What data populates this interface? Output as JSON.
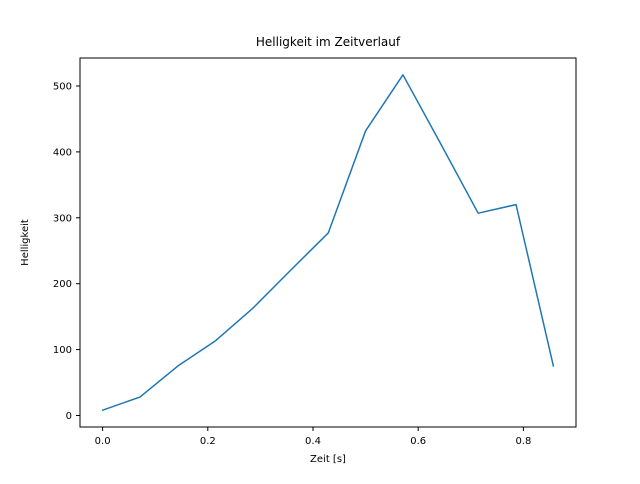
{
  "chart_data": {
    "type": "line",
    "title": "Helligkeit im Zeitverlauf",
    "xlabel": "Zeit [s]",
    "ylabel": "Helligkeit",
    "x": [
      0.0,
      0.071,
      0.143,
      0.214,
      0.286,
      0.357,
      0.429,
      0.5,
      0.571,
      0.643,
      0.714,
      0.786,
      0.857
    ],
    "y": [
      8,
      28,
      75,
      113,
      163,
      220,
      277,
      432,
      517,
      412,
      307,
      320,
      75
    ],
    "xlim": [
      -0.043,
      0.9
    ],
    "ylim": [
      -17.5,
      542.5
    ],
    "xticks": [
      0.0,
      0.2,
      0.4,
      0.6,
      0.8
    ],
    "xtick_labels": [
      "0.0",
      "0.2",
      "0.4",
      "0.6",
      "0.8"
    ],
    "yticks": [
      0,
      100,
      200,
      300,
      400,
      500
    ],
    "ytick_labels": [
      "0",
      "100",
      "200",
      "300",
      "400",
      "500"
    ],
    "line_color": "#1f77b4",
    "grid": false,
    "legend": null
  }
}
